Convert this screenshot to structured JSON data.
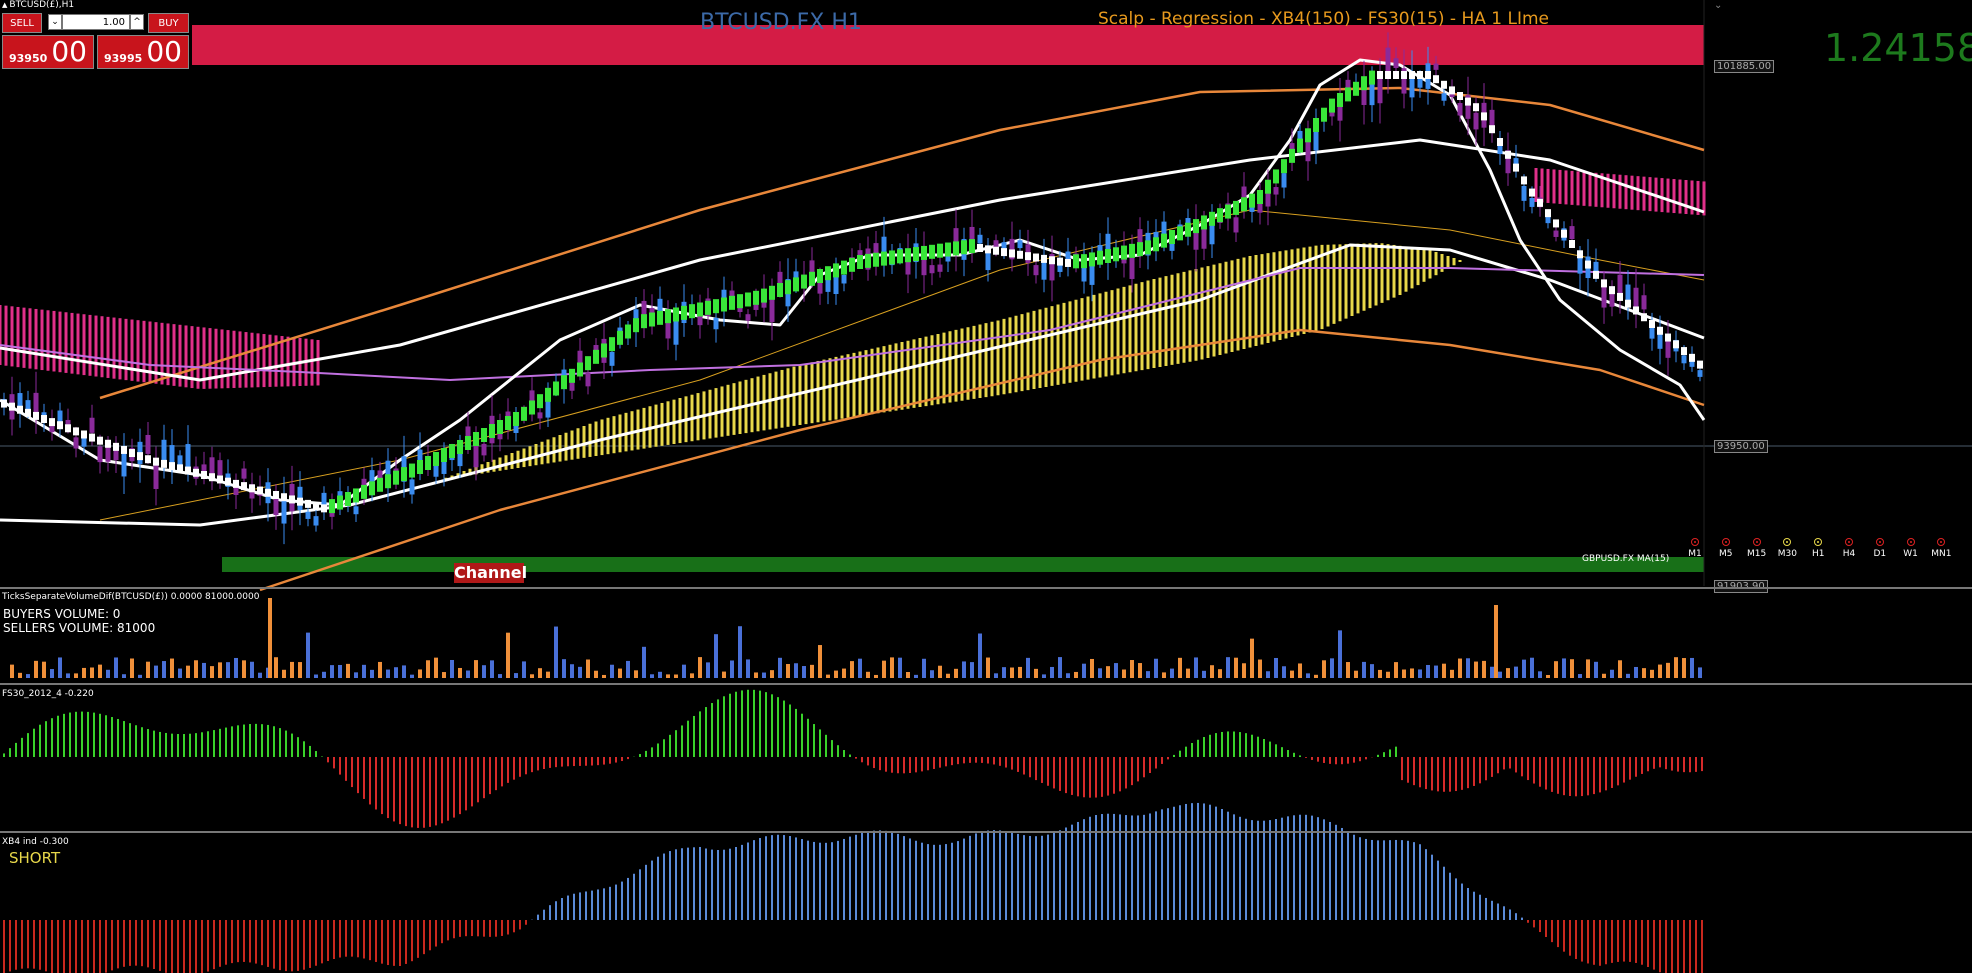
{
  "window": {
    "title": "BTCUSD(£),H1"
  },
  "trade_panel": {
    "sell_label": "SELL",
    "buy_label": "BUY",
    "lot_value": "1.00",
    "lot_down": "⌄",
    "lot_up": "^",
    "sell_price_small": "93950",
    "sell_price_big": "00",
    "buy_price_small": "93995",
    "buy_price_big": "00"
  },
  "chart": {
    "title": "BTCUSD.FX H1",
    "strategy": "Scalp - Regression - XB4(150) - FS30(15) - HA  1 LIme",
    "current_price": "1.24158",
    "price_tag_high": "101885.00",
    "price_tag_current": "93950.00",
    "price_tag_low": "91903.90",
    "channel_label": "Channel",
    "ma_label": "GBPUSD.FX MA(15)",
    "timeframes": [
      {
        "label": "M1",
        "ok": false
      },
      {
        "label": "M5",
        "ok": false
      },
      {
        "label": "M15",
        "ok": false
      },
      {
        "label": "M30",
        "ok": true
      },
      {
        "label": "H1",
        "ok": true
      },
      {
        "label": "H4",
        "ok": false
      },
      {
        "label": "D1",
        "ok": false
      },
      {
        "label": "W1",
        "ok": false
      },
      {
        "label": "MN1",
        "ok": false
      }
    ],
    "colors": {
      "bull_candle": "#3a8cf0",
      "bear_candle": "#8a2a9a",
      "ha_bull": "#39e639",
      "ha_bear": "#ffffff",
      "regression": "#e8873a",
      "band": "#ffffff",
      "fill_bars": "#e8d84a",
      "pink_bars": "#e0308a",
      "top_banner": "#d41c45",
      "bottom_banner": "#187018"
    }
  },
  "volume_panel": {
    "title": "TicksSeparateVolumeDif(BTCUSD(£)) 0.0000 81000.0000",
    "buyers": "BUYERS VOLUME: 0",
    "sellers": "SELLERS VOLUME: 81000"
  },
  "fs30_panel": {
    "title": "FS30_2012_4 -0.220"
  },
  "xb4_panel": {
    "title": "XB4 ind -0.300",
    "signal": "SHORT"
  }
}
